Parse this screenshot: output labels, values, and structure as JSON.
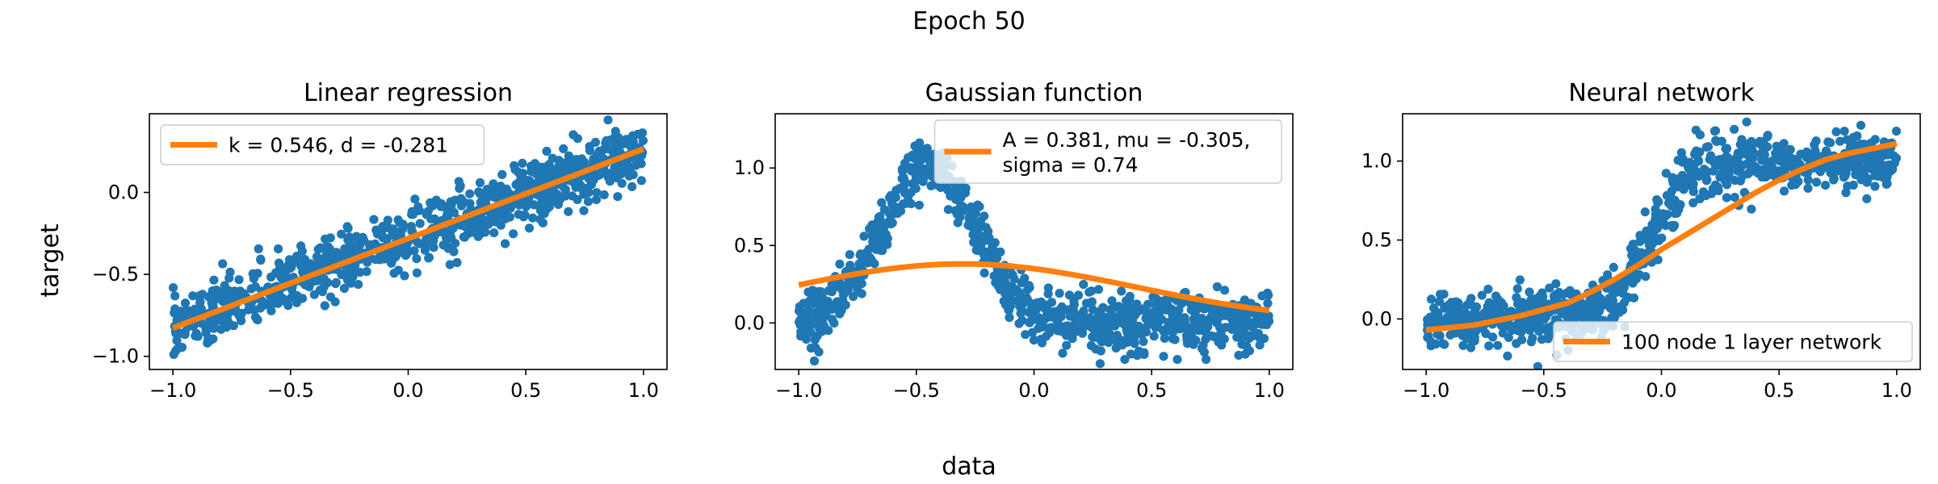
{
  "figure": {
    "suptitle": "Epoch 50",
    "xlabel": "data",
    "ylabel": "target"
  },
  "colors": {
    "points": "#1f77b4",
    "fit": "#ff7f0e"
  },
  "chart_data": [
    {
      "type": "scatter",
      "title": "Linear regression",
      "xlim": [
        -1.1,
        1.1
      ],
      "ylim": [
        -1.08,
        0.48
      ],
      "xticks": [
        -1.0,
        -0.5,
        0.0,
        0.5,
        1.0
      ],
      "xtick_labels": [
        "−1.0",
        "−0.5",
        "0.0",
        "0.5",
        "1.0"
      ],
      "yticks": [
        -1.0,
        -0.5,
        0.0
      ],
      "ytick_labels": [
        "−1.0",
        "−0.5",
        "0.0"
      ],
      "legend_position": "upper-left",
      "series": [
        {
          "name": "k = 0.546, d = -0.281",
          "kind": "line",
          "function": "linear",
          "params": {
            "k": 0.546,
            "d": -0.281
          }
        },
        {
          "kind": "scatter",
          "trend": "linear",
          "params": {
            "k": 0.546,
            "d": -0.281
          },
          "noise_sd": 0.09,
          "count": 900,
          "x_range": [
            -1.0,
            1.0
          ]
        }
      ]
    },
    {
      "type": "scatter",
      "title": "Gaussian function",
      "xlim": [
        -1.1,
        1.1
      ],
      "ylim": [
        -0.3,
        1.35
      ],
      "xticks": [
        -1.0,
        -0.5,
        0.0,
        0.5,
        1.0
      ],
      "xtick_labels": [
        "−1.0",
        "−0.5",
        "0.0",
        "0.5",
        "1.0"
      ],
      "yticks": [
        0.0,
        0.5,
        1.0
      ],
      "ytick_labels": [
        "0.0",
        "0.5",
        "1.0"
      ],
      "legend_position": "upper-right",
      "series": [
        {
          "name": "A = 0.381, mu = -0.305,",
          "name_line2": "sigma = 0.74",
          "kind": "line",
          "function": "gaussian",
          "params": {
            "A": 0.381,
            "mu": -0.305,
            "sigma": 0.74
          }
        },
        {
          "kind": "scatter",
          "trend": "gaussian",
          "params": {
            "A": 1.0,
            "mu": -0.45,
            "sigma": 0.2
          },
          "noise_sd": 0.09,
          "count": 900,
          "x_range": [
            -1.0,
            1.0
          ]
        }
      ]
    },
    {
      "type": "scatter",
      "title": "Neural network",
      "xlim": [
        -1.1,
        1.1
      ],
      "ylim": [
        -0.32,
        1.3
      ],
      "xticks": [
        -1.0,
        -0.5,
        0.0,
        0.5,
        1.0
      ],
      "xtick_labels": [
        "−1.0",
        "−0.5",
        "0.0",
        "0.5",
        "1.0"
      ],
      "yticks": [
        0.0,
        0.5,
        1.0
      ],
      "ytick_labels": [
        "0.0",
        "0.5",
        "1.0"
      ],
      "legend_position": "lower-right",
      "series": [
        {
          "name": "100 node 1 layer network",
          "kind": "line",
          "function": "points",
          "x": [
            -1.0,
            -0.8,
            -0.6,
            -0.4,
            -0.3,
            -0.2,
            -0.1,
            0.0,
            0.1,
            0.2,
            0.3,
            0.4,
            0.5,
            0.6,
            0.7,
            0.8,
            0.9,
            1.0
          ],
          "y": [
            -0.07,
            -0.04,
            0.02,
            0.1,
            0.17,
            0.25,
            0.34,
            0.44,
            0.53,
            0.62,
            0.71,
            0.8,
            0.88,
            0.95,
            1.01,
            1.05,
            1.08,
            1.11
          ]
        },
        {
          "kind": "scatter",
          "trend": "sigmoid",
          "params": {
            "low": 0.0,
            "high": 1.0,
            "center": -0.05,
            "slope": 12
          },
          "noise_sd": 0.09,
          "count": 900,
          "x_range": [
            -1.0,
            1.0
          ]
        }
      ]
    }
  ]
}
